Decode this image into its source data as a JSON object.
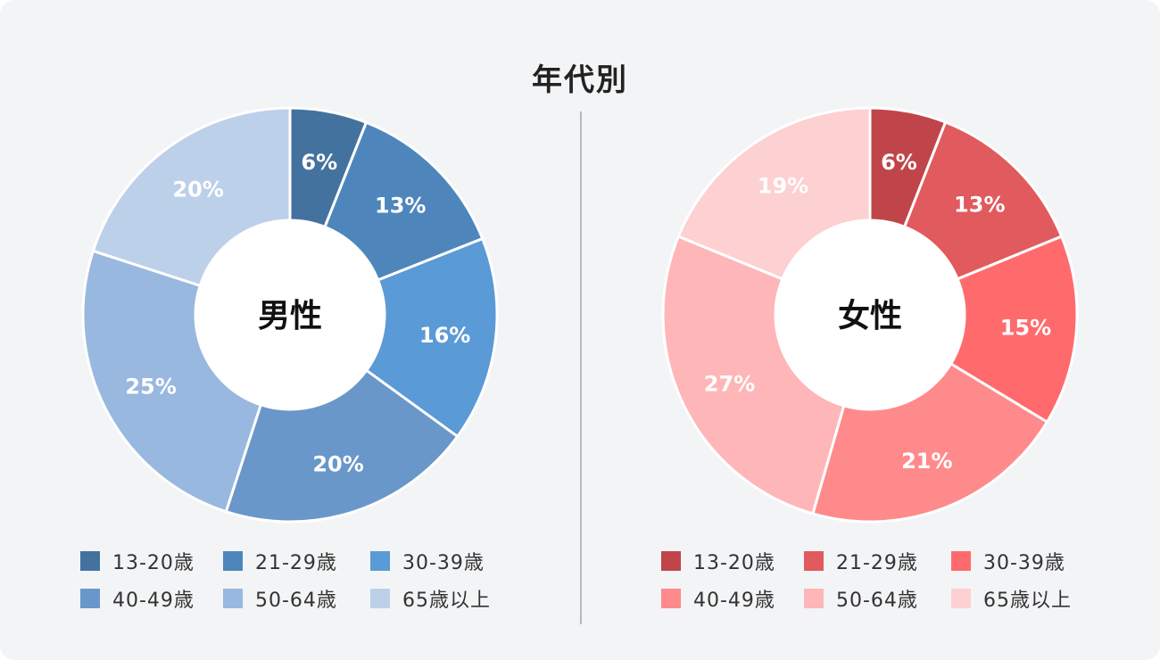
{
  "title": "年代別",
  "chart_data": [
    {
      "type": "pie",
      "center_label": "男性",
      "categories": [
        "13-20歳",
        "21-29歳",
        "30-39歳",
        "40-49歳",
        "50-64歳",
        "65歳以上"
      ],
      "values": [
        6,
        13,
        16,
        20,
        25,
        20
      ],
      "value_labels": [
        "6%",
        "13%",
        "16%",
        "20%",
        "25%",
        "20%"
      ],
      "colors": [
        "#44729f",
        "#4e86bb",
        "#5a9ad6",
        "#6a97c9",
        "#98b8df",
        "#bdd0ea"
      ],
      "legend_position": "bottom"
    },
    {
      "type": "pie",
      "center_label": "女性",
      "categories": [
        "13-20歳",
        "21-29歳",
        "30-39歳",
        "40-49歳",
        "50-64歳",
        "65歳以上"
      ],
      "values": [
        6,
        13,
        15,
        21,
        27,
        19
      ],
      "value_labels": [
        "6%",
        "13%",
        "15%",
        "21%",
        "27%",
        "19%"
      ],
      "colors": [
        "#c0454a",
        "#e05a5e",
        "#ff6b6d",
        "#ff8a8c",
        "#ffb6b8",
        "#fdd0d1"
      ],
      "legend_position": "bottom"
    }
  ]
}
